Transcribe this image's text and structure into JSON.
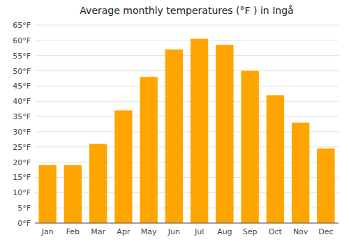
{
  "chart_data": {
    "type": "bar",
    "title": "Average monthly temperatures (°F ) in Ingå",
    "categories": [
      "Jan",
      "Feb",
      "Mar",
      "Apr",
      "May",
      "Jun",
      "Jul",
      "Aug",
      "Sep",
      "Oct",
      "Nov",
      "Dec"
    ],
    "values": [
      19,
      19,
      26,
      37,
      48,
      57,
      60.5,
      58.5,
      50,
      42,
      33,
      24.5
    ],
    "color": "#FFA500",
    "ylim": [
      0,
      65
    ],
    "yticks": [
      {
        "value": 0,
        "label": "0°F"
      },
      {
        "value": 5,
        "label": "5°F"
      },
      {
        "value": 10,
        "label": "10°F"
      },
      {
        "value": 15,
        "label": "15°F"
      },
      {
        "value": 20,
        "label": "20°F"
      },
      {
        "value": 25,
        "label": "25°F"
      },
      {
        "value": 30,
        "label": "30°F"
      },
      {
        "value": 35,
        "label": "35°F"
      },
      {
        "value": 40,
        "label": "40°F"
      },
      {
        "value": 45,
        "label": "45°F"
      },
      {
        "value": 50,
        "label": "50°F"
      },
      {
        "value": 55,
        "label": "55°F"
      },
      {
        "value": 60,
        "label": "60°F"
      },
      {
        "value": 65,
        "label": "65°F"
      }
    ],
    "grid": true
  }
}
